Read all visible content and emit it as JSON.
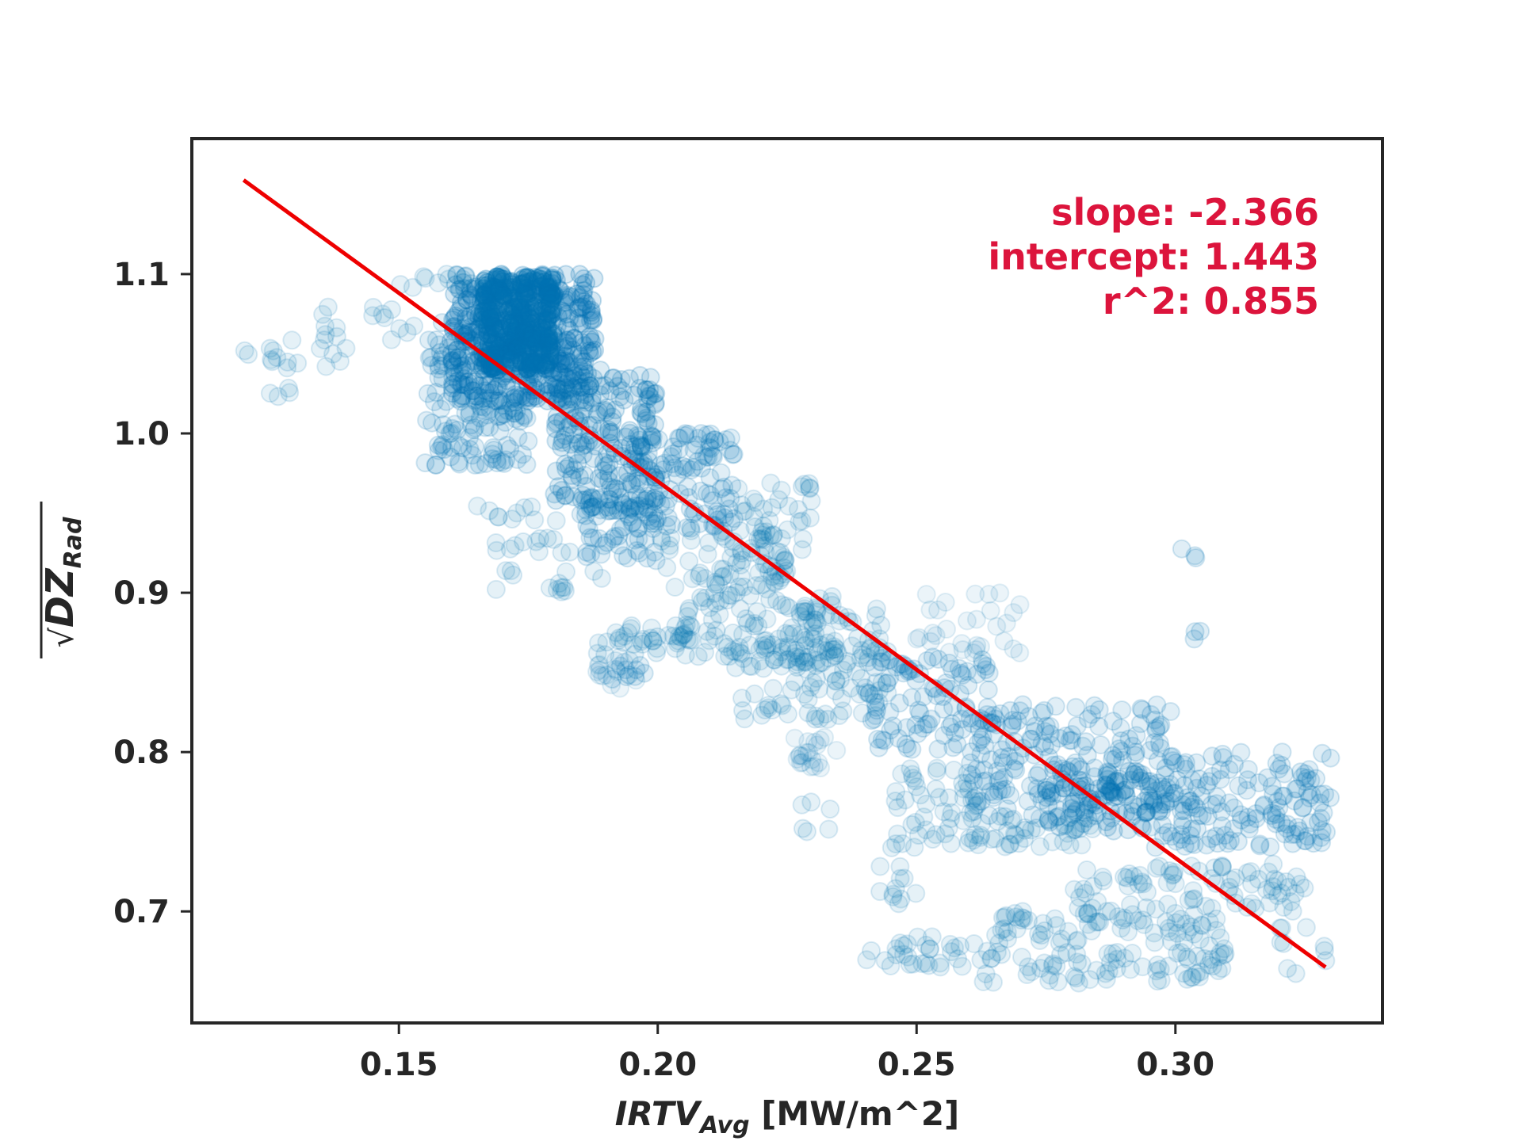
{
  "chart_data": {
    "type": "scatter",
    "title": "",
    "xlabel_main": "IRTV",
    "xlabel_sub": "Avg",
    "xlabel_units": "[MW/m^2]",
    "ylabel_main": "DZ",
    "ylabel_sub": "Rad",
    "ylabel_sqrt": "√",
    "xlim": [
      0.11,
      0.34
    ],
    "ylim": [
      0.63,
      1.185
    ],
    "xticks": [
      0.15,
      0.2,
      0.25,
      0.3
    ],
    "xtick_labels": [
      "0.15",
      "0.20",
      "0.25",
      "0.30"
    ],
    "yticks": [
      0.7,
      0.8,
      0.9,
      1.0,
      1.1
    ],
    "ytick_labels": [
      "0.7",
      "0.8",
      "0.9",
      "1.0",
      "1.1"
    ],
    "point_color": "#0072b2",
    "line_color": "#ee0000",
    "annotation_color": "#dc143c",
    "fit_line": {
      "x": [
        0.12,
        0.329
      ],
      "y": [
        1.159,
        0.665
      ]
    },
    "annotations": {
      "slope": "slope: -2.366",
      "intercept": "intercept: 1.443",
      "r2": "r^2: 0.855"
    },
    "clusters": [
      {
        "xr": [
          0.16,
          0.188
        ],
        "yr": [
          1.02,
          1.1
        ],
        "n": 420,
        "a": 0.16
      },
      {
        "xr": [
          0.166,
          0.18
        ],
        "yr": [
          1.04,
          1.1
        ],
        "n": 260,
        "a": 0.22
      },
      {
        "xr": [
          0.155,
          0.175
        ],
        "yr": [
          0.98,
          1.07
        ],
        "n": 160,
        "a": 0.12
      },
      {
        "xr": [
          0.18,
          0.2
        ],
        "yr": [
          0.95,
          1.04
        ],
        "n": 180,
        "a": 0.14
      },
      {
        "xr": [
          0.195,
          0.215
        ],
        "yr": [
          0.94,
          1.0
        ],
        "n": 120,
        "a": 0.12
      },
      {
        "xr": [
          0.185,
          0.2
        ],
        "yr": [
          0.92,
          0.96
        ],
        "n": 60,
        "a": 0.12
      },
      {
        "xr": [
          0.2,
          0.225
        ],
        "yr": [
          0.9,
          0.94
        ],
        "n": 70,
        "a": 0.1
      },
      {
        "xr": [
          0.215,
          0.23
        ],
        "yr": [
          0.92,
          0.97
        ],
        "n": 40,
        "a": 0.1
      },
      {
        "xr": [
          0.205,
          0.235
        ],
        "yr": [
          0.86,
          0.9
        ],
        "n": 70,
        "a": 0.1
      },
      {
        "xr": [
          0.188,
          0.215
        ],
        "yr": [
          0.86,
          0.88
        ],
        "n": 50,
        "a": 0.1
      },
      {
        "xr": [
          0.188,
          0.196
        ],
        "yr": [
          0.84,
          0.86
        ],
        "n": 15,
        "a": 0.08
      },
      {
        "xr": [
          0.215,
          0.245
        ],
        "yr": [
          0.82,
          0.87
        ],
        "n": 90,
        "a": 0.1
      },
      {
        "xr": [
          0.225,
          0.245
        ],
        "yr": [
          0.85,
          0.89
        ],
        "n": 50,
        "a": 0.1
      },
      {
        "xr": [
          0.226,
          0.235
        ],
        "yr": [
          0.79,
          0.81
        ],
        "n": 20,
        "a": 0.08
      },
      {
        "xr": [
          0.24,
          0.265
        ],
        "yr": [
          0.8,
          0.86
        ],
        "n": 90,
        "a": 0.12
      },
      {
        "xr": [
          0.25,
          0.27
        ],
        "yr": [
          0.86,
          0.9
        ],
        "n": 30,
        "a": 0.08
      },
      {
        "xr": [
          0.245,
          0.262
        ],
        "yr": [
          0.74,
          0.79
        ],
        "n": 50,
        "a": 0.1
      },
      {
        "xr": [
          0.26,
          0.3
        ],
        "yr": [
          0.76,
          0.83
        ],
        "n": 190,
        "a": 0.12
      },
      {
        "xr": [
          0.275,
          0.295
        ],
        "yr": [
          0.75,
          0.79
        ],
        "n": 80,
        "a": 0.14
      },
      {
        "xr": [
          0.295,
          0.33
        ],
        "yr": [
          0.74,
          0.8
        ],
        "n": 160,
        "a": 0.12
      },
      {
        "xr": [
          0.26,
          0.285
        ],
        "yr": [
          0.74,
          0.76
        ],
        "n": 40,
        "a": 0.1
      },
      {
        "xr": [
          0.28,
          0.325
        ],
        "yr": [
          0.7,
          0.73
        ],
        "n": 80,
        "a": 0.1
      },
      {
        "xr": [
          0.265,
          0.305
        ],
        "yr": [
          0.68,
          0.7
        ],
        "n": 60,
        "a": 0.1
      },
      {
        "xr": [
          0.262,
          0.31
        ],
        "yr": [
          0.655,
          0.675
        ],
        "n": 70,
        "a": 0.1
      },
      {
        "xr": [
          0.24,
          0.262
        ],
        "yr": [
          0.665,
          0.685
        ],
        "n": 30,
        "a": 0.1
      },
      {
        "xr": [
          0.242,
          0.25
        ],
        "yr": [
          0.7,
          0.74
        ],
        "n": 12,
        "a": 0.1
      },
      {
        "xr": [
          0.3,
          0.31
        ],
        "yr": [
          0.67,
          0.7
        ],
        "n": 15,
        "a": 0.1
      },
      {
        "xr": [
          0.32,
          0.33
        ],
        "yr": [
          0.66,
          0.69
        ],
        "n": 10,
        "a": 0.1
      },
      {
        "xr": [
          0.227,
          0.234
        ],
        "yr": [
          0.75,
          0.77
        ],
        "n": 6,
        "a": 0.1
      },
      {
        "xr": [
          0.3,
          0.305
        ],
        "yr": [
          0.92,
          0.93
        ],
        "n": 3,
        "a": 0.12
      },
      {
        "xr": [
          0.302,
          0.306
        ],
        "yr": [
          0.868,
          0.878
        ],
        "n": 3,
        "a": 0.12
      },
      {
        "xr": [
          0.12,
          0.14
        ],
        "yr": [
          1.04,
          1.06
        ],
        "n": 16,
        "a": 0.1
      },
      {
        "xr": [
          0.125,
          0.13
        ],
        "yr": [
          1.02,
          1.03
        ],
        "n": 4,
        "a": 0.1
      },
      {
        "xr": [
          0.135,
          0.155
        ],
        "yr": [
          1.055,
          1.08
        ],
        "n": 16,
        "a": 0.1
      },
      {
        "xr": [
          0.15,
          0.165
        ],
        "yr": [
          1.09,
          1.1
        ],
        "n": 12,
        "a": 0.1
      },
      {
        "xr": [
          0.165,
          0.185
        ],
        "yr": [
          0.945,
          0.955
        ],
        "n": 10,
        "a": 0.1
      },
      {
        "xr": [
          0.165,
          0.185
        ],
        "yr": [
          0.925,
          0.935
        ],
        "n": 12,
        "a": 0.1
      },
      {
        "xr": [
          0.168,
          0.19
        ],
        "yr": [
          0.9,
          0.915
        ],
        "n": 14,
        "a": 0.1
      },
      {
        "xr": [
          0.188,
          0.198
        ],
        "yr": [
          0.845,
          0.855
        ],
        "n": 10,
        "a": 0.12
      }
    ]
  }
}
